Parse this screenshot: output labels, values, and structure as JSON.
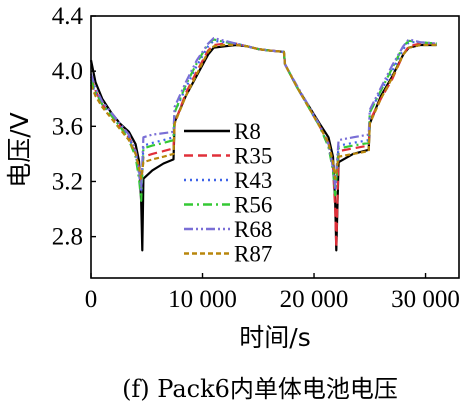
{
  "chart_data": {
    "type": "line",
    "title": "",
    "caption": "(f) Pack6内单体电池电压",
    "xlabel": "时间/s",
    "ylabel": "电压/V",
    "xlim": [
      0,
      33000
    ],
    "ylim": [
      2.5,
      4.4
    ],
    "xticks": [
      {
        "value": 0,
        "label": "0"
      },
      {
        "value": 10000,
        "label": "10 000"
      },
      {
        "value": 20000,
        "label": "20 000"
      },
      {
        "value": 30000,
        "label": "30 000"
      }
    ],
    "yticks": [
      {
        "value": 2.8,
        "label": "2.8"
      },
      {
        "value": 3.2,
        "label": "3.2"
      },
      {
        "value": 3.6,
        "label": "3.6"
      },
      {
        "value": 4.0,
        "label": "4.0"
      },
      {
        "value": 4.4,
        "label": "4.4"
      }
    ],
    "grid": false,
    "legend_position": "center",
    "series": [
      {
        "name": "R8",
        "color": "#000000",
        "dash": "solid",
        "points": [
          [
            0,
            4.08
          ],
          [
            400,
            3.92
          ],
          [
            1000,
            3.8
          ],
          [
            1800,
            3.7
          ],
          [
            2600,
            3.62
          ],
          [
            3400,
            3.56
          ],
          [
            4000,
            3.47
          ],
          [
            4300,
            3.35
          ],
          [
            4500,
            3.05
          ],
          [
            4600,
            2.7
          ],
          [
            4700,
            3.22
          ],
          [
            5500,
            3.28
          ],
          [
            6500,
            3.33
          ],
          [
            7400,
            3.36
          ],
          [
            7500,
            3.63
          ],
          [
            8500,
            3.82
          ],
          [
            9500,
            3.97
          ],
          [
            10500,
            4.12
          ],
          [
            11000,
            4.17
          ],
          [
            12000,
            4.18
          ],
          [
            13000,
            4.19
          ],
          [
            14000,
            4.18
          ],
          [
            15000,
            4.16
          ],
          [
            16000,
            4.15
          ],
          [
            17300,
            4.14
          ],
          [
            17400,
            4.05
          ],
          [
            18500,
            3.88
          ],
          [
            19500,
            3.75
          ],
          [
            20500,
            3.62
          ],
          [
            21300,
            3.52
          ],
          [
            21700,
            3.38
          ],
          [
            21900,
            3.05
          ],
          [
            22000,
            2.7
          ],
          [
            22200,
            3.34
          ],
          [
            23500,
            3.4
          ],
          [
            24900,
            3.43
          ],
          [
            25000,
            3.62
          ],
          [
            26000,
            3.82
          ],
          [
            27000,
            3.96
          ],
          [
            28000,
            4.12
          ],
          [
            28500,
            4.17
          ],
          [
            29500,
            4.19
          ],
          [
            31000,
            4.19
          ]
        ]
      },
      {
        "name": "R35",
        "color": "#e0303a",
        "dash": "dashed",
        "points": [
          [
            0,
            3.96
          ],
          [
            400,
            3.86
          ],
          [
            1000,
            3.76
          ],
          [
            1800,
            3.68
          ],
          [
            2600,
            3.6
          ],
          [
            3400,
            3.52
          ],
          [
            4000,
            3.42
          ],
          [
            4300,
            3.3
          ],
          [
            4500,
            3.18
          ],
          [
            4700,
            3.38
          ],
          [
            5500,
            3.4
          ],
          [
            6500,
            3.42
          ],
          [
            7400,
            3.44
          ],
          [
            7500,
            3.62
          ],
          [
            8500,
            3.84
          ],
          [
            9500,
            4.0
          ],
          [
            10500,
            4.15
          ],
          [
            11000,
            4.19
          ],
          [
            12000,
            4.2
          ],
          [
            13000,
            4.2
          ],
          [
            14000,
            4.18
          ],
          [
            15000,
            4.16
          ],
          [
            16000,
            4.15
          ],
          [
            17300,
            4.14
          ],
          [
            17400,
            4.05
          ],
          [
            18500,
            3.88
          ],
          [
            19500,
            3.74
          ],
          [
            20500,
            3.6
          ],
          [
            21300,
            3.48
          ],
          [
            21700,
            3.3
          ],
          [
            21900,
            3.0
          ],
          [
            22000,
            2.72
          ],
          [
            22200,
            3.42
          ],
          [
            23500,
            3.44
          ],
          [
            24900,
            3.46
          ],
          [
            25000,
            3.64
          ],
          [
            26000,
            3.8
          ],
          [
            27000,
            3.94
          ],
          [
            28000,
            4.12
          ],
          [
            28500,
            4.18
          ],
          [
            29500,
            4.2
          ],
          [
            31000,
            4.2
          ]
        ]
      },
      {
        "name": "R43",
        "color": "#3f63e8",
        "dash": "dotted",
        "points": [
          [
            0,
            3.92
          ],
          [
            400,
            3.84
          ],
          [
            1000,
            3.76
          ],
          [
            1800,
            3.68
          ],
          [
            2600,
            3.6
          ],
          [
            3400,
            3.52
          ],
          [
            4000,
            3.4
          ],
          [
            4300,
            3.26
          ],
          [
            4500,
            3.12
          ],
          [
            4700,
            3.46
          ],
          [
            5500,
            3.48
          ],
          [
            6500,
            3.5
          ],
          [
            7400,
            3.52
          ],
          [
            7500,
            3.7
          ],
          [
            8500,
            3.88
          ],
          [
            9500,
            4.04
          ],
          [
            10500,
            4.18
          ],
          [
            11000,
            4.22
          ],
          [
            12000,
            4.21
          ],
          [
            13000,
            4.2
          ],
          [
            14000,
            4.18
          ],
          [
            15000,
            4.16
          ],
          [
            16000,
            4.15
          ],
          [
            17300,
            4.14
          ],
          [
            17400,
            4.05
          ],
          [
            18500,
            3.88
          ],
          [
            19500,
            3.74
          ],
          [
            20500,
            3.6
          ],
          [
            21300,
            3.46
          ],
          [
            21700,
            3.3
          ],
          [
            21900,
            3.15
          ],
          [
            22200,
            3.46
          ],
          [
            23500,
            3.48
          ],
          [
            24900,
            3.5
          ],
          [
            25000,
            3.7
          ],
          [
            26000,
            3.86
          ],
          [
            27000,
            4.0
          ],
          [
            28000,
            4.16
          ],
          [
            28500,
            4.21
          ],
          [
            29500,
            4.21
          ],
          [
            31000,
            4.2
          ]
        ]
      },
      {
        "name": "R56",
        "color": "#34c934",
        "dash": "dashdot",
        "points": [
          [
            0,
            3.94
          ],
          [
            400,
            3.85
          ],
          [
            1000,
            3.76
          ],
          [
            1800,
            3.68
          ],
          [
            2600,
            3.6
          ],
          [
            3400,
            3.5
          ],
          [
            4000,
            3.38
          ],
          [
            4300,
            3.22
          ],
          [
            4500,
            3.06
          ],
          [
            4700,
            3.44
          ],
          [
            5500,
            3.46
          ],
          [
            6500,
            3.48
          ],
          [
            7400,
            3.5
          ],
          [
            7500,
            3.7
          ],
          [
            8500,
            3.9
          ],
          [
            9500,
            4.06
          ],
          [
            10500,
            4.2
          ],
          [
            11000,
            4.23
          ],
          [
            12000,
            4.21
          ],
          [
            13000,
            4.2
          ],
          [
            14000,
            4.18
          ],
          [
            15000,
            4.16
          ],
          [
            16000,
            4.15
          ],
          [
            17300,
            4.14
          ],
          [
            17400,
            4.05
          ],
          [
            18500,
            3.88
          ],
          [
            19500,
            3.74
          ],
          [
            20500,
            3.6
          ],
          [
            21300,
            3.45
          ],
          [
            21700,
            3.28
          ],
          [
            21900,
            3.1
          ],
          [
            22200,
            3.44
          ],
          [
            23500,
            3.46
          ],
          [
            24900,
            3.48
          ],
          [
            25000,
            3.7
          ],
          [
            26000,
            3.86
          ],
          [
            27000,
            4.02
          ],
          [
            28000,
            4.18
          ],
          [
            28500,
            4.22
          ],
          [
            29500,
            4.21
          ],
          [
            31000,
            4.2
          ]
        ]
      },
      {
        "name": "R68",
        "color": "#7a6fd6",
        "dash": "dashdotdot",
        "points": [
          [
            0,
            3.98
          ],
          [
            400,
            3.88
          ],
          [
            1000,
            3.78
          ],
          [
            1800,
            3.7
          ],
          [
            2600,
            3.62
          ],
          [
            3400,
            3.54
          ],
          [
            4000,
            3.42
          ],
          [
            4300,
            3.28
          ],
          [
            4500,
            3.14
          ],
          [
            4700,
            3.52
          ],
          [
            5500,
            3.54
          ],
          [
            6500,
            3.55
          ],
          [
            7400,
            3.56
          ],
          [
            7500,
            3.74
          ],
          [
            8500,
            3.92
          ],
          [
            9500,
            4.08
          ],
          [
            10500,
            4.2
          ],
          [
            11000,
            4.24
          ],
          [
            12000,
            4.22
          ],
          [
            13000,
            4.2
          ],
          [
            14000,
            4.18
          ],
          [
            15000,
            4.16
          ],
          [
            16000,
            4.15
          ],
          [
            17300,
            4.14
          ],
          [
            17400,
            4.05
          ],
          [
            18500,
            3.89
          ],
          [
            19500,
            3.75
          ],
          [
            20500,
            3.61
          ],
          [
            21300,
            3.47
          ],
          [
            21700,
            3.3
          ],
          [
            21900,
            3.16
          ],
          [
            22200,
            3.5
          ],
          [
            23500,
            3.52
          ],
          [
            24900,
            3.54
          ],
          [
            25000,
            3.72
          ],
          [
            26000,
            3.88
          ],
          [
            27000,
            4.04
          ],
          [
            28000,
            4.18
          ],
          [
            28500,
            4.23
          ],
          [
            29500,
            4.21
          ],
          [
            31000,
            4.2
          ]
        ]
      },
      {
        "name": "R87",
        "color": "#b8860b",
        "dash": "shortdash",
        "points": [
          [
            0,
            3.9
          ],
          [
            400,
            3.82
          ],
          [
            1000,
            3.74
          ],
          [
            1800,
            3.66
          ],
          [
            2600,
            3.58
          ],
          [
            3400,
            3.5
          ],
          [
            4000,
            3.4
          ],
          [
            4300,
            3.3
          ],
          [
            4500,
            3.22
          ],
          [
            4700,
            3.34
          ],
          [
            5500,
            3.36
          ],
          [
            6500,
            3.38
          ],
          [
            7400,
            3.4
          ],
          [
            7500,
            3.62
          ],
          [
            8500,
            3.82
          ],
          [
            9500,
            3.98
          ],
          [
            10500,
            4.14
          ],
          [
            11000,
            4.18
          ],
          [
            12000,
            4.19
          ],
          [
            13000,
            4.19
          ],
          [
            14000,
            4.18
          ],
          [
            15000,
            4.16
          ],
          [
            16000,
            4.15
          ],
          [
            17300,
            4.14
          ],
          [
            17400,
            4.05
          ],
          [
            18500,
            3.88
          ],
          [
            19500,
            3.74
          ],
          [
            20500,
            3.6
          ],
          [
            21300,
            3.48
          ],
          [
            21700,
            3.34
          ],
          [
            21900,
            3.22
          ],
          [
            22200,
            3.38
          ],
          [
            23500,
            3.4
          ],
          [
            24900,
            3.42
          ],
          [
            25000,
            3.62
          ],
          [
            26000,
            3.8
          ],
          [
            27000,
            3.95
          ],
          [
            28000,
            4.12
          ],
          [
            28500,
            4.17
          ],
          [
            29500,
            4.19
          ],
          [
            31000,
            4.19
          ]
        ]
      }
    ]
  }
}
